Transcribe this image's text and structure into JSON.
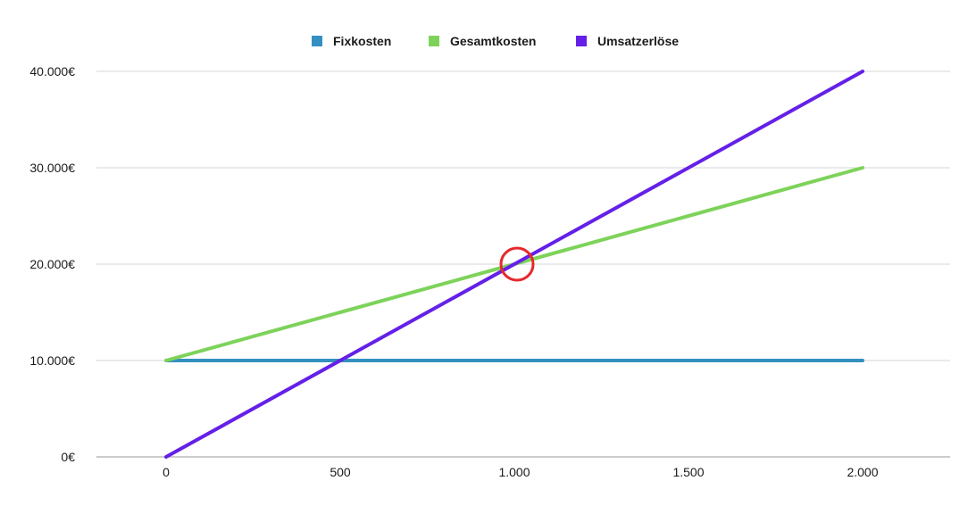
{
  "chart_data": {
    "type": "line",
    "x": [
      0,
      2000
    ],
    "series": [
      {
        "name": "Fixkosten",
        "values": [
          10000,
          10000
        ],
        "color": "#3490c0"
      },
      {
        "name": "Gesamtkosten",
        "values": [
          10000,
          30000
        ],
        "color": "#7dd35a"
      },
      {
        "name": "Umsatzerlöse",
        "values": [
          0,
          40000
        ],
        "color": "#6420e8"
      }
    ],
    "xlim": [
      0,
      2000
    ],
    "ylim": [
      0,
      40000
    ],
    "x_ticks": [
      0,
      500,
      1000,
      1500,
      2000
    ],
    "x_tick_labels": [
      "0",
      "500",
      "1.000",
      "1.500",
      "2.000"
    ],
    "y_ticks": [
      0,
      10000,
      20000,
      30000,
      40000
    ],
    "y_tick_labels": [
      "0€",
      "10.000€",
      "20.000€",
      "30.000€",
      "40.000€"
    ],
    "grid": true,
    "legend_position": "top-center",
    "annotation": {
      "type": "circle",
      "x": 1000,
      "y": 20000,
      "color": "#e8262a"
    }
  }
}
